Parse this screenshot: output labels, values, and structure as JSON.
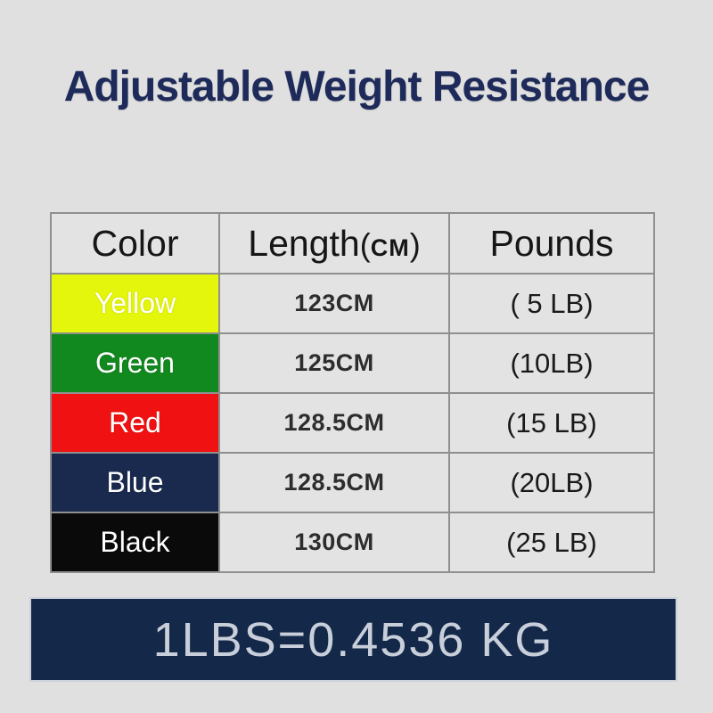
{
  "title": "Adjustable Weight Resistance",
  "colors": {
    "background": "#e0e0e0",
    "title_text": "#1e2b5a",
    "table_border": "#8f8f8f",
    "cell_background": "#e3e3e3",
    "footer_background": "#14294a",
    "footer_text": "#c9cfda"
  },
  "table": {
    "headers": {
      "color": "Color",
      "length_main": "Length",
      "length_paren_open": "(",
      "length_unit": "CM",
      "length_paren_close": ")",
      "pounds": "Pounds"
    },
    "rows": [
      {
        "color_name": "Yellow",
        "swatch": "#e4f60b",
        "length": "123CM",
        "pounds": "( 5 LB)"
      },
      {
        "color_name": "Green",
        "swatch": "#12891f",
        "length": "125CM",
        "pounds": "(10LB)"
      },
      {
        "color_name": "Red",
        "swatch": "#f01212",
        "length": "128.5CM",
        "pounds": "(15 LB)"
      },
      {
        "color_name": "Blue",
        "swatch": "#1a2a4e",
        "length": "128.5CM",
        "pounds": "(20LB)"
      },
      {
        "color_name": "Black",
        "swatch": "#0a0a0a",
        "length": "130CM",
        "pounds": "(25 LB)"
      }
    ]
  },
  "footer": {
    "conversion": "1LBS=0.4536 KG"
  },
  "chart_data": {
    "type": "table",
    "title": "Adjustable Weight Resistance",
    "columns": [
      "Color",
      "Length(CM)",
      "Pounds"
    ],
    "rows": [
      [
        "Yellow",
        "123CM",
        "5 LB"
      ],
      [
        "Green",
        "125CM",
        "10 LB"
      ],
      [
        "Red",
        "128.5CM",
        "15 LB"
      ],
      [
        "Blue",
        "128.5CM",
        "20 LB"
      ],
      [
        "Black",
        "130CM",
        "25 LB"
      ]
    ],
    "note": "1LBS=0.4536 KG"
  }
}
